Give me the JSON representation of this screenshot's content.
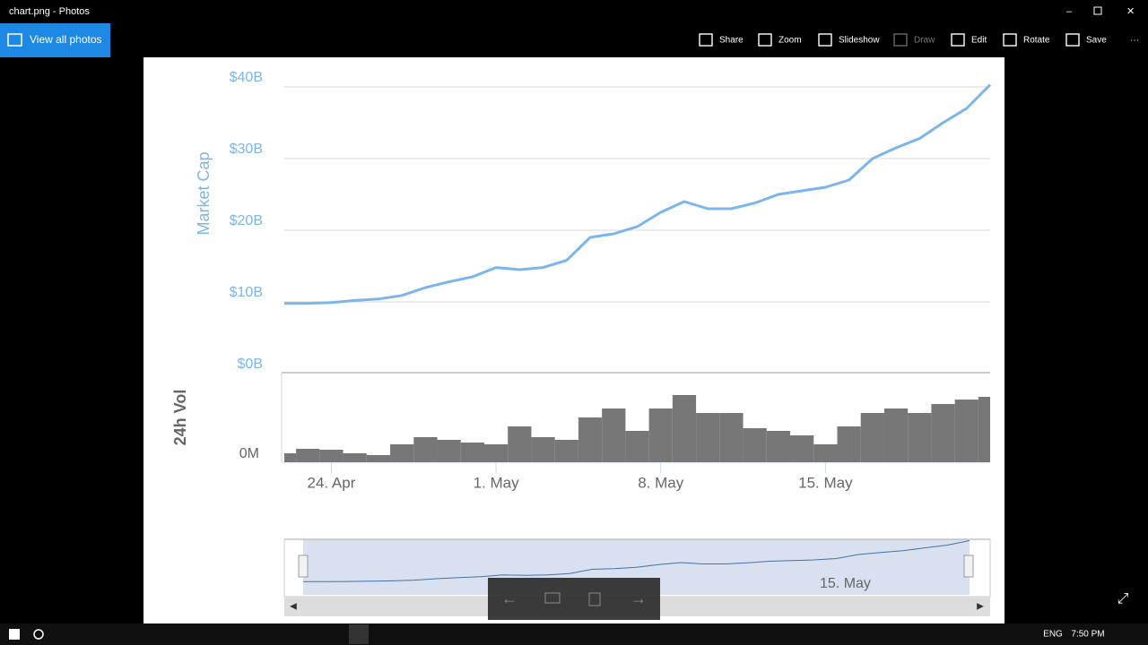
{
  "window_title": "chart.png - Photos",
  "back_button": "View all photos",
  "toolbar": [
    "Share",
    "Zoom",
    "Slideshow",
    "Draw",
    "Edit",
    "Rotate",
    "Save",
    "···"
  ],
  "taskbar": {
    "language": "ENG",
    "time": "7:50 PM"
  },
  "chart_data": {
    "type": "line",
    "categories": [
      null,
      null,
      "24. Apr",
      null,
      null,
      null,
      null,
      null,
      null,
      "1. May",
      null,
      null,
      null,
      null,
      null,
      null,
      "8. May",
      null,
      null,
      null,
      null,
      null,
      null,
      "15. May",
      null,
      null,
      null,
      null,
      null,
      null,
      null
    ],
    "series": [
      {
        "name": "Market Cap",
        "color": "#7cb5ec",
        "values": [
          9.8,
          9.8,
          9.9,
          10.2,
          10.4,
          10.9,
          12.0,
          12.8,
          13.5,
          14.8,
          14.5,
          14.8,
          15.8,
          19.0,
          19.5,
          20.5,
          22.5,
          24.0,
          23.0,
          23.0,
          23.8,
          25.0,
          25.5,
          26.0,
          27.0,
          30.0,
          31.5,
          32.8,
          35.0,
          37.0,
          40.3
        ]
      },
      {
        "name": "24h Vol",
        "color": "#777777",
        "axis": "y2",
        "values": [
          100,
          150,
          140,
          100,
          80,
          200,
          280,
          250,
          220,
          200,
          400,
          280,
          250,
          500,
          600,
          350,
          600,
          750,
          550,
          550,
          380,
          350,
          300,
          200,
          400,
          550,
          600,
          550,
          650,
          700,
          730
        ]
      }
    ],
    "ylim": [
      0,
      40
    ],
    "yticks": [
      {
        "value": 0,
        "label": "$0B"
      },
      {
        "value": 10,
        "label": "$10B"
      },
      {
        "value": 20,
        "label": "$20B"
      },
      {
        "value": 30,
        "label": "$30B"
      },
      {
        "value": 40,
        "label": "$40B"
      }
    ],
    "y2lim": [
      0,
      1000
    ],
    "y2ticks": [
      {
        "value": 0,
        "label": "0M"
      }
    ],
    "navigator_label": "15. May",
    "grid": true
  }
}
